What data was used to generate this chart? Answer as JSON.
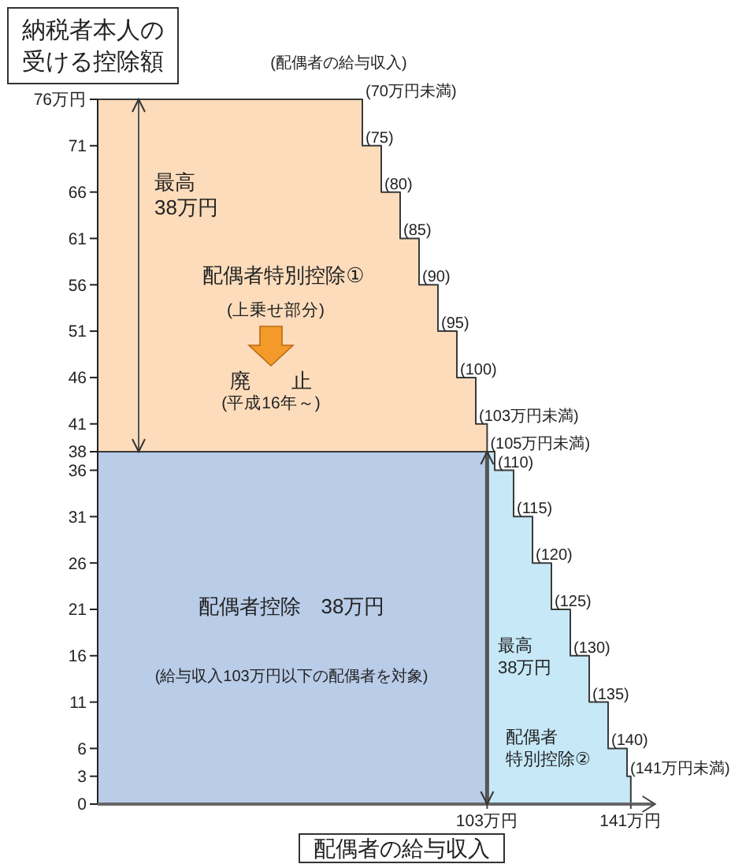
{
  "chart_data": {
    "type": "area",
    "xlabel": "配偶者の給与収入",
    "ylabel": "納税者本人の受ける控除額",
    "series": [
      {
        "name": "配偶者特別控除①",
        "color": "#fcdcbb",
        "x": [
          0,
          70,
          70,
          75,
          75,
          80,
          80,
          85,
          85,
          90,
          90,
          95,
          95,
          100,
          100,
          103
        ],
        "values": [
          76,
          76,
          71,
          71,
          66,
          66,
          61,
          61,
          56,
          56,
          51,
          51,
          46,
          46,
          41,
          41
        ]
      },
      {
        "name": "配偶者控除　38万円",
        "color": "#b9cce8",
        "x": [
          0,
          103
        ],
        "values": [
          38,
          38
        ]
      },
      {
        "name": "配偶者特別控除②",
        "color": "#c6e8f7",
        "x": [
          103,
          105,
          105,
          110,
          110,
          115,
          115,
          120,
          120,
          125,
          125,
          130,
          130,
          135,
          135,
          140,
          140,
          141
        ],
        "values": [
          38,
          38,
          36,
          36,
          31,
          31,
          26,
          26,
          21,
          21,
          16,
          16,
          11,
          11,
          6,
          6,
          3,
          3
        ]
      }
    ],
    "xlim": [
      0,
      147
    ],
    "ylim": [
      0,
      76
    ],
    "xticks": [
      {
        "value": 103,
        "label": "103万円"
      },
      {
        "value": 141,
        "label": "141万円"
      }
    ],
    "yticks": [
      0,
      3,
      6,
      11,
      16,
      21,
      26,
      31,
      36,
      38,
      41,
      46,
      51,
      56,
      61,
      66,
      71,
      {
        "value": 76,
        "label": "76万円"
      }
    ],
    "annotations": [
      "(配偶者の給与収入)",
      "最高38万円",
      "(上乗せ部分)",
      "廃　　止",
      "(平成16年～)",
      "(給与収入103万円以下の配偶者を対象)",
      "最高38万円",
      {
        "text": "(70万円未満)",
        "x": 70,
        "y": 76
      },
      {
        "text": "(75)",
        "x": 70,
        "y": 71
      },
      {
        "text": "(80)",
        "x": 75,
        "y": 66
      },
      {
        "text": "(85)",
        "x": 80,
        "y": 61
      },
      {
        "text": "(90)",
        "x": 85,
        "y": 56
      },
      {
        "text": "(95)",
        "x": 90,
        "y": 51
      },
      {
        "text": "(100)",
        "x": 95,
        "y": 46
      },
      {
        "text": "(103万円未満)",
        "x": 100,
        "y": 41
      },
      {
        "text": "(105万円未満)",
        "x": 103,
        "y": 38
      },
      {
        "text": "(110)",
        "x": 105,
        "y": 36
      },
      {
        "text": "(115)",
        "x": 110,
        "y": 31
      },
      {
        "text": "(120)",
        "x": 115,
        "y": 26
      },
      {
        "text": "(125)",
        "x": 120,
        "y": 21
      },
      {
        "text": "(130)",
        "x": 125,
        "y": 16
      },
      {
        "text": "(135)",
        "x": 130,
        "y": 11
      },
      {
        "text": "(140)",
        "x": 135,
        "y": 6
      },
      {
        "text": "(141万円未満)",
        "x": 140,
        "y": 3
      }
    ]
  }
}
